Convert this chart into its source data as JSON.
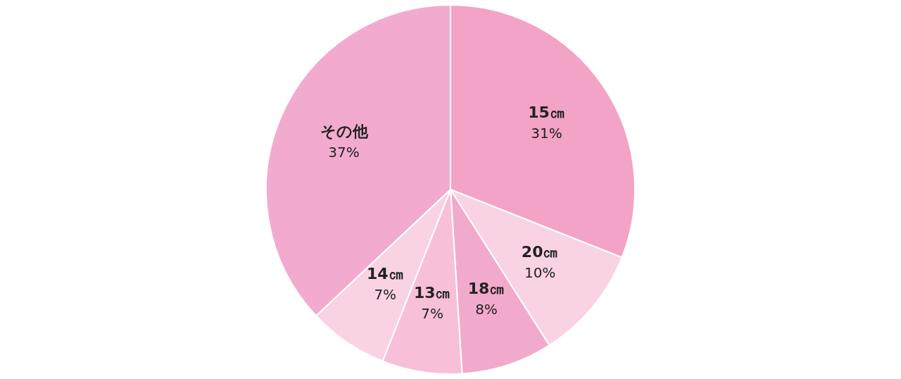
{
  "chart_data": {
    "type": "pie",
    "categories": [
      "15㎝",
      "20㎝",
      "18㎝",
      "13㎝",
      "14㎝",
      "その他"
    ],
    "values": [
      31,
      10,
      8,
      7,
      7,
      37
    ],
    "value_labels": [
      "31%",
      "10%",
      "8%",
      "7%",
      "7%",
      "37%"
    ],
    "colors": [
      "#f2a3c6",
      "#f9d3e3",
      "#f2aacc",
      "#f7c0d8",
      "#f9d3e3",
      "#f2abcf"
    ]
  }
}
